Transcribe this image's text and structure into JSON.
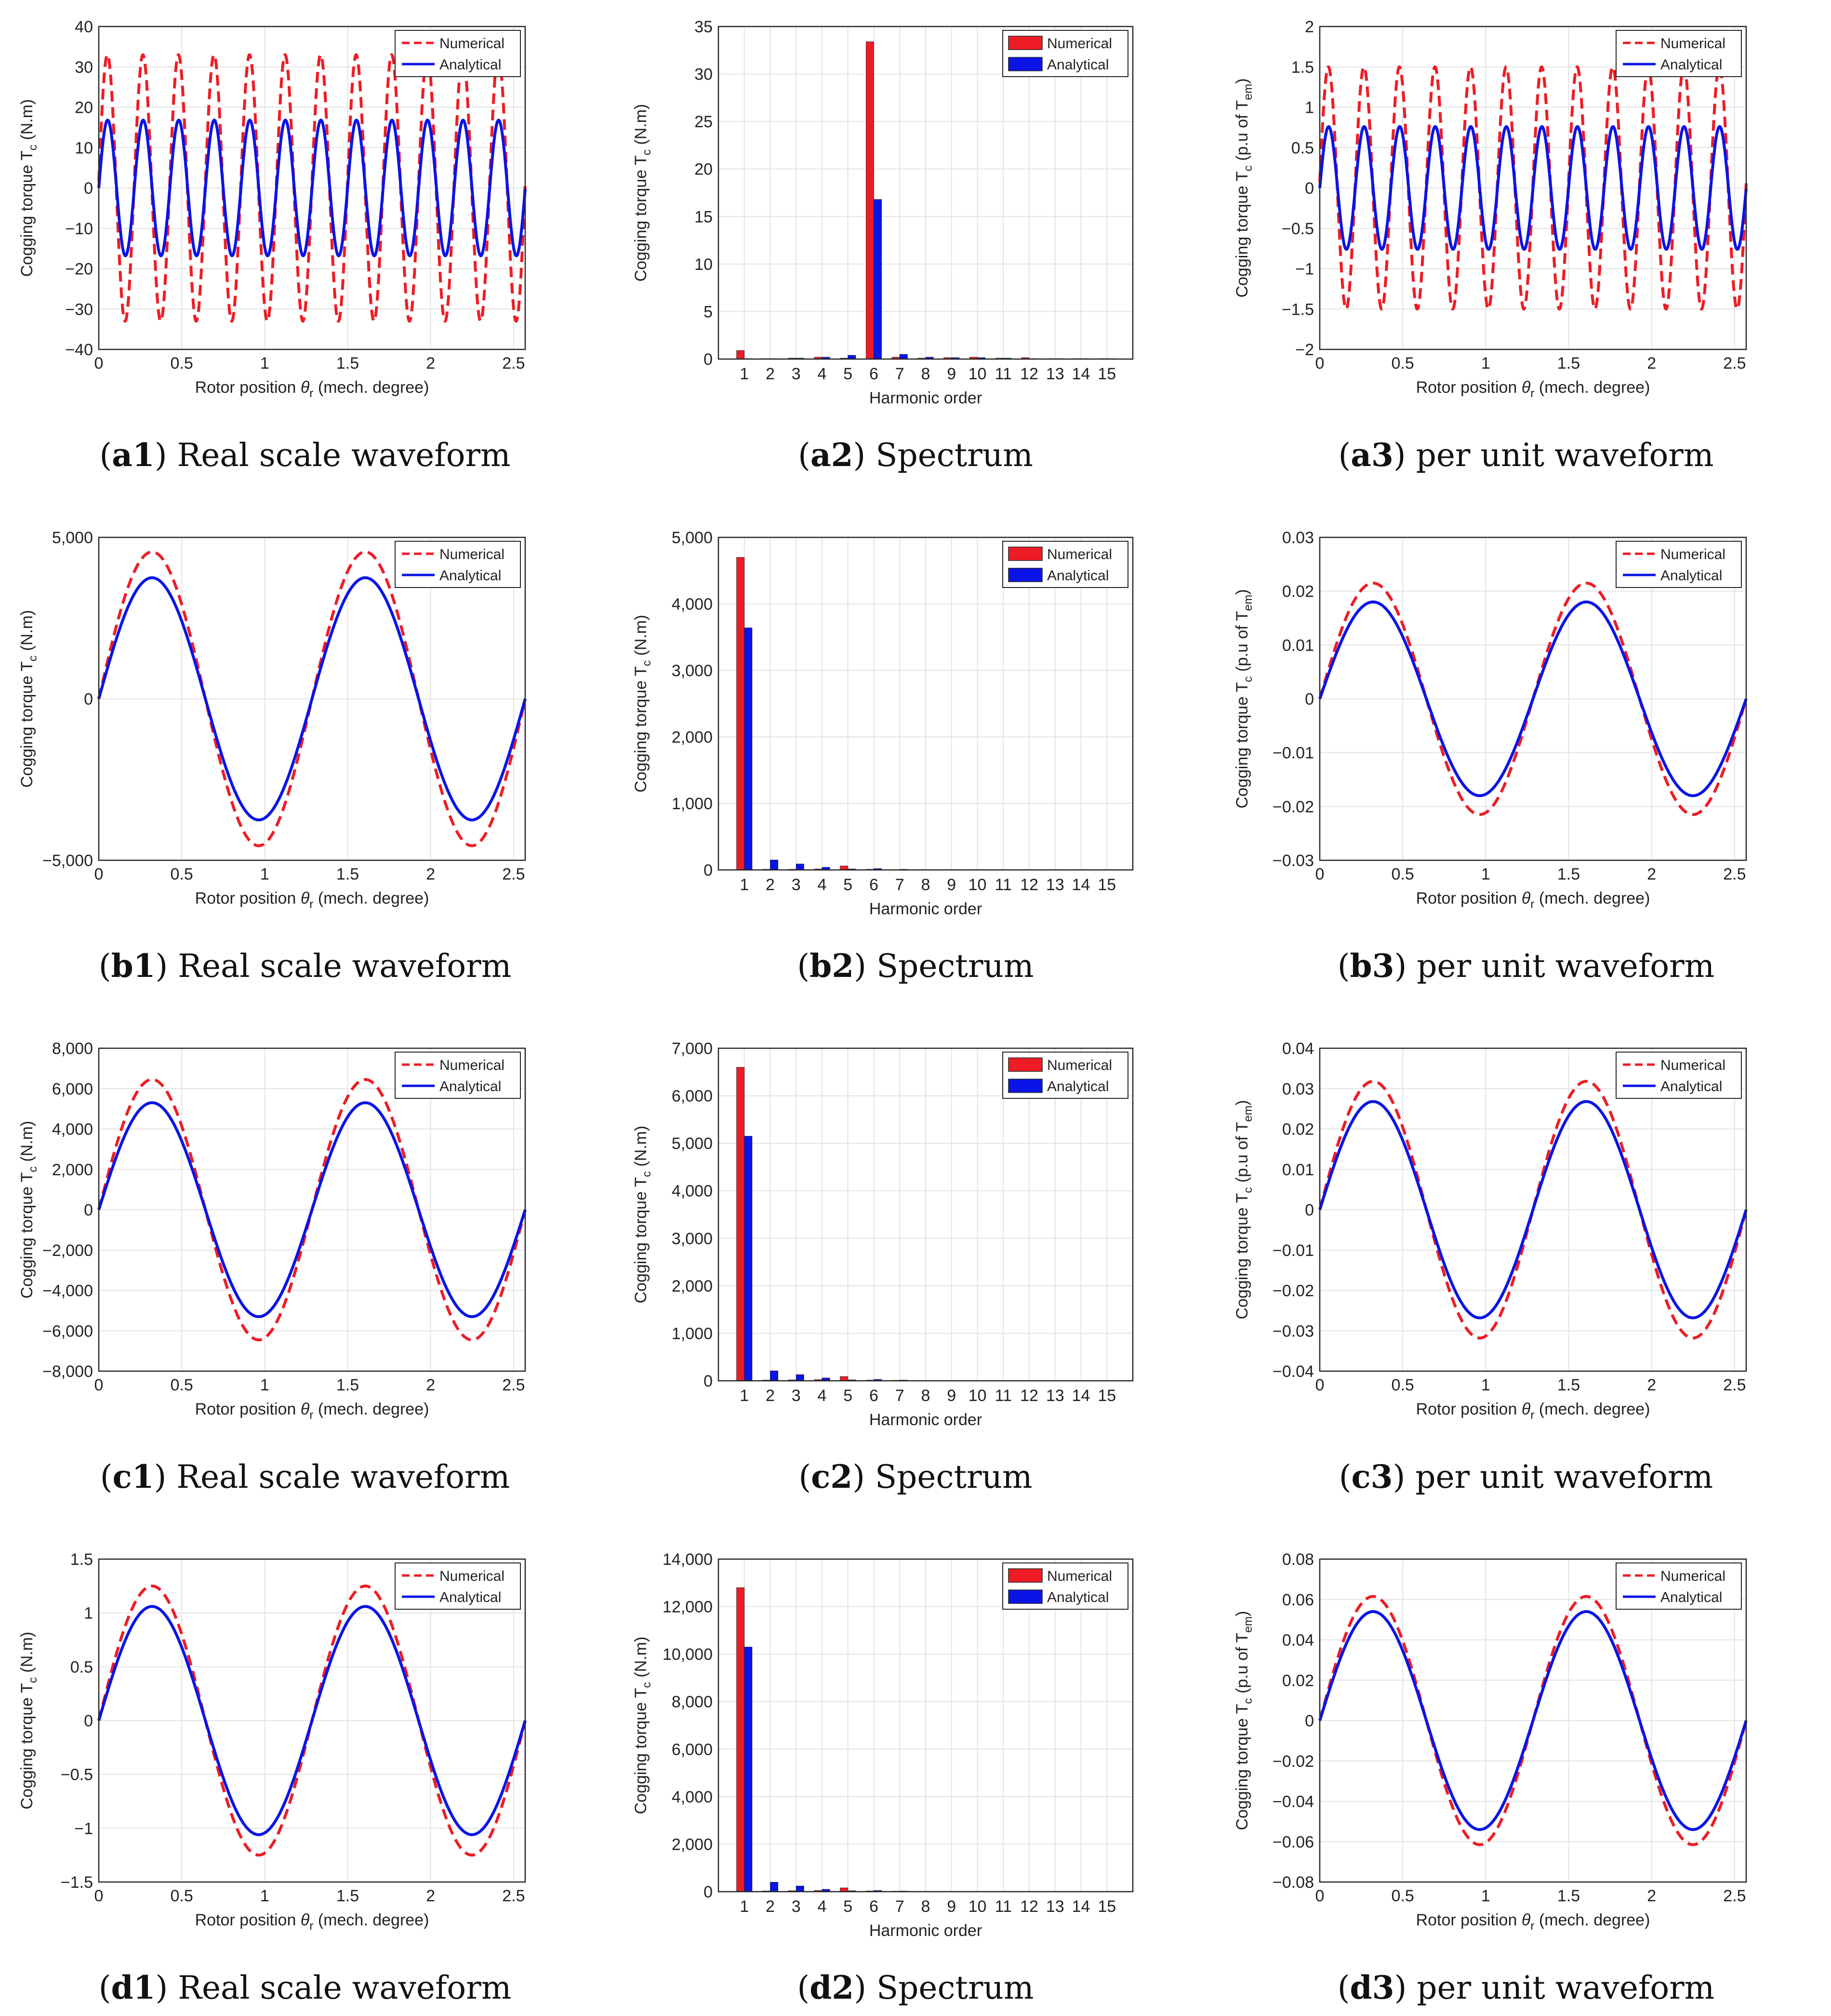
{
  "figure": {
    "id": "cogging-torque-figure"
  },
  "colors": {
    "numerical": "#ee1c25",
    "analytical": "#0a14e6",
    "grid": "#e3e3e3",
    "axis": "#262626"
  },
  "chart_data": [
    {
      "id": "a1",
      "type": "line",
      "caption_letter": "a1",
      "caption_text": "Real scale waveform",
      "ylabel": "Cogging torque T",
      "ylabel_sub": "c",
      "ylabel_tail": " (N.m)",
      "xlabel": "Rotor position θ",
      "xlabel_sub": "r",
      "xlabel_tail": " (mech. degree)",
      "xlim": [
        0,
        2.57
      ],
      "ylim": [
        -40,
        40
      ],
      "xticks": [
        0,
        0.5,
        1,
        1.5,
        2,
        2.5
      ],
      "xtick_labels": [
        "0",
        "0.5",
        "1",
        "1.5",
        "2",
        "2.5"
      ],
      "yticks": [
        -40,
        -30,
        -20,
        -10,
        0,
        10,
        20,
        30,
        40
      ],
      "ytick_labels": [
        "−40",
        "−30",
        "−20",
        "−10",
        "0",
        "10",
        "20",
        "30",
        "40"
      ],
      "legend": [
        "Numerical",
        "Analytical"
      ],
      "series": [
        {
          "name": "Numerical",
          "style": "dashed",
          "amplitude": 33,
          "cycles": 12,
          "period_deg": 0.2142
        },
        {
          "name": "Analytical",
          "style": "solid",
          "amplitude": 16.8,
          "cycles": 12,
          "period_deg": 0.2142
        }
      ]
    },
    {
      "id": "a2",
      "type": "bar",
      "caption_letter": "a2",
      "caption_text": "Spectrum",
      "ylabel": "Cogging torque T",
      "ylabel_sub": "c",
      "ylabel_tail": " (N.m)",
      "xlabel": "Harmonic order",
      "categories": [
        "1",
        "2",
        "3",
        "4",
        "5",
        "6",
        "7",
        "8",
        "9",
        "10",
        "11",
        "12",
        "13",
        "14",
        "15"
      ],
      "ylim": [
        0,
        35
      ],
      "yticks": [
        0,
        5,
        10,
        15,
        20,
        25,
        30,
        35
      ],
      "ytick_labels": [
        "0",
        "5",
        "10",
        "15",
        "20",
        "25",
        "30",
        "35"
      ],
      "legend": [
        "Numerical",
        "Analytical"
      ],
      "series": [
        {
          "name": "Numerical",
          "values": [
            0.9,
            0.05,
            0.1,
            0.2,
            0.1,
            33.4,
            0.2,
            0.1,
            0.15,
            0.2,
            0.1,
            0.15,
            0.05,
            0.05,
            0.05
          ]
        },
        {
          "name": "Analytical",
          "values": [
            0.05,
            0.05,
            0.1,
            0.2,
            0.4,
            16.8,
            0.5,
            0.2,
            0.15,
            0.15,
            0.1,
            0.05,
            0.05,
            0.05,
            0.05
          ]
        }
      ]
    },
    {
      "id": "a3",
      "type": "line",
      "caption_letter": "a3",
      "caption_text": "per unit waveform",
      "ylabel": "Cogging torque T",
      "ylabel_sub": "c",
      "ylabel_tail": " (p.u of T",
      "ylabel_sub2": "em",
      "ylabel_tail2": ")",
      "xlabel": "Rotor position θ",
      "xlabel_sub": "r",
      "xlabel_tail": " (mech. degree)",
      "xlim": [
        0,
        2.57
      ],
      "ylim": [
        -2,
        2
      ],
      "xticks": [
        0,
        0.5,
        1,
        1.5,
        2,
        2.5
      ],
      "xtick_labels": [
        "0",
        "0.5",
        "1",
        "1.5",
        "2",
        "2.5"
      ],
      "yticks": [
        -2,
        -1.5,
        -1,
        -0.5,
        0,
        0.5,
        1,
        1.5,
        2
      ],
      "ytick_labels": [
        "−2",
        "−1.5",
        "−1",
        "−0.5",
        "0",
        "0.5",
        "1",
        "1.5",
        "2"
      ],
      "legend": [
        "Numerical",
        "Analytical"
      ],
      "series": [
        {
          "name": "Numerical",
          "style": "dashed",
          "amplitude": 1.5,
          "cycles": 12,
          "period_deg": 0.2142
        },
        {
          "name": "Analytical",
          "style": "solid",
          "amplitude": 0.76,
          "cycles": 12,
          "period_deg": 0.2142
        }
      ]
    },
    {
      "id": "b1",
      "type": "line",
      "caption_letter": "b1",
      "caption_text": "Real scale waveform",
      "ylabel": "Cogging torque T",
      "ylabel_sub": "c",
      "ylabel_tail": " (N.m)",
      "xlabel": "Rotor position θ",
      "xlabel_sub": "r",
      "xlabel_tail": " (mech. degree)",
      "xlim": [
        0,
        2.57
      ],
      "ylim": [
        -5000,
        5000
      ],
      "xticks": [
        0,
        0.5,
        1,
        1.5,
        2,
        2.5
      ],
      "xtick_labels": [
        "0",
        "0.5",
        "1",
        "1.5",
        "2",
        "2.5"
      ],
      "yticks": [
        -5000,
        0,
        5000
      ],
      "ytick_labels": [
        "−5,000",
        "0",
        "5,000"
      ],
      "legend": [
        "Numerical",
        "Analytical"
      ],
      "series": [
        {
          "name": "Numerical",
          "style": "dashed",
          "amplitude": 4550,
          "cycles": 2,
          "period_deg": 1.285
        },
        {
          "name": "Analytical",
          "style": "solid",
          "amplitude": 3750,
          "cycles": 2,
          "period_deg": 1.285
        }
      ]
    },
    {
      "id": "b2",
      "type": "bar",
      "caption_letter": "b2",
      "caption_text": "Spectrum",
      "ylabel": "Cogging torque T",
      "ylabel_sub": "c",
      "ylabel_tail": " (N.m)",
      "xlabel": "Harmonic order",
      "categories": [
        "1",
        "2",
        "3",
        "4",
        "5",
        "6",
        "7",
        "8",
        "9",
        "10",
        "11",
        "12",
        "13",
        "14",
        "15"
      ],
      "ylim": [
        0,
        5000
      ],
      "yticks": [
        0,
        1000,
        2000,
        3000,
        4000,
        5000
      ],
      "ytick_labels": [
        "0",
        "1,000",
        "2,000",
        "3,000",
        "4,000",
        "5,000"
      ],
      "legend": [
        "Numerical",
        "Analytical"
      ],
      "series": [
        {
          "name": "Numerical",
          "values": [
            4700,
            10,
            10,
            15,
            60,
            10,
            5,
            5,
            5,
            5,
            5,
            5,
            5,
            5,
            5
          ]
        },
        {
          "name": "Analytical",
          "values": [
            3640,
            150,
            90,
            40,
            15,
            20,
            10,
            5,
            5,
            5,
            5,
            5,
            5,
            5,
            5
          ]
        }
      ]
    },
    {
      "id": "b3",
      "type": "line",
      "caption_letter": "b3",
      "caption_text": "per unit waveform",
      "ylabel": "Cogging torque T",
      "ylabel_sub": "c",
      "ylabel_tail": " (p.u of T",
      "ylabel_sub2": "em",
      "ylabel_tail2": ")",
      "xlabel": "Rotor position θ",
      "xlabel_sub": "r",
      "xlabel_tail": " (mech. degree)",
      "xlim": [
        0,
        2.57
      ],
      "ylim": [
        -0.03,
        0.03
      ],
      "xticks": [
        0,
        0.5,
        1,
        1.5,
        2,
        2.5
      ],
      "xtick_labels": [
        "0",
        "0.5",
        "1",
        "1.5",
        "2",
        "2.5"
      ],
      "yticks": [
        -0.03,
        -0.02,
        -0.01,
        0,
        0.01,
        0.02,
        0.03
      ],
      "ytick_labels": [
        "−0.03",
        "−0.02",
        "−0.01",
        "0",
        "0.01",
        "0.02",
        "0.03"
      ],
      "legend": [
        "Numerical",
        "Analytical"
      ],
      "series": [
        {
          "name": "Numerical",
          "style": "dashed",
          "amplitude": 0.0215,
          "cycles": 2,
          "period_deg": 1.285
        },
        {
          "name": "Analytical",
          "style": "solid",
          "amplitude": 0.018,
          "cycles": 2,
          "period_deg": 1.285
        }
      ]
    },
    {
      "id": "c1",
      "type": "line",
      "caption_letter": "c1",
      "caption_text": "Real scale waveform",
      "ylabel": "Cogging torque T",
      "ylabel_sub": "c",
      "ylabel_tail": " (N.m)",
      "xlabel": "Rotor position θ",
      "xlabel_sub": "r",
      "xlabel_tail": " (mech. degree)",
      "xlim": [
        0,
        2.57
      ],
      "ylim": [
        -8000,
        8000
      ],
      "xticks": [
        0,
        0.5,
        1,
        1.5,
        2,
        2.5
      ],
      "xtick_labels": [
        "0",
        "0.5",
        "1",
        "1.5",
        "2",
        "2.5"
      ],
      "yticks": [
        -8000,
        -6000,
        -4000,
        -2000,
        0,
        2000,
        4000,
        6000,
        8000
      ],
      "ytick_labels": [
        "−8,000",
        "−6,000",
        "−4,000",
        "−2,000",
        "0",
        "2,000",
        "4,000",
        "6,000",
        "8,000"
      ],
      "legend": [
        "Numerical",
        "Analytical"
      ],
      "series": [
        {
          "name": "Numerical",
          "style": "dashed",
          "amplitude": 6450,
          "cycles": 2,
          "period_deg": 1.285
        },
        {
          "name": "Analytical",
          "style": "solid",
          "amplitude": 5300,
          "cycles": 2,
          "period_deg": 1.285
        }
      ]
    },
    {
      "id": "c2",
      "type": "bar",
      "caption_letter": "c2",
      "caption_text": "Spectrum",
      "ylabel": "Cogging torque T",
      "ylabel_sub": "c",
      "ylabel_tail": " (N.m)",
      "xlabel": "Harmonic order",
      "categories": [
        "1",
        "2",
        "3",
        "4",
        "5",
        "6",
        "7",
        "8",
        "9",
        "10",
        "11",
        "12",
        "13",
        "14",
        "15"
      ],
      "ylim": [
        0,
        7000
      ],
      "yticks": [
        0,
        1000,
        2000,
        3000,
        4000,
        5000,
        6000,
        7000
      ],
      "ytick_labels": [
        "0",
        "1,000",
        "2,000",
        "3,000",
        "4,000",
        "5,000",
        "6,000",
        "7,000"
      ],
      "legend": [
        "Numerical",
        "Analytical"
      ],
      "series": [
        {
          "name": "Numerical",
          "values": [
            6600,
            15,
            20,
            25,
            90,
            15,
            10,
            5,
            5,
            5,
            5,
            5,
            5,
            5,
            5
          ]
        },
        {
          "name": "Analytical",
          "values": [
            5150,
            210,
            130,
            60,
            20,
            30,
            15,
            5,
            5,
            5,
            5,
            5,
            5,
            5,
            5
          ]
        }
      ]
    },
    {
      "id": "c3",
      "type": "line",
      "caption_letter": "c3",
      "caption_text": "per unit waveform",
      "ylabel": "Cogging torque T",
      "ylabel_sub": "c",
      "ylabel_tail": " (p.u of T",
      "ylabel_sub2": "em",
      "ylabel_tail2": ")",
      "xlabel": "Rotor position θ",
      "xlabel_sub": "r",
      "xlabel_tail": " (mech. degree)",
      "xlim": [
        0,
        2.57
      ],
      "ylim": [
        -0.04,
        0.04
      ],
      "xticks": [
        0,
        0.5,
        1,
        1.5,
        2,
        2.5
      ],
      "xtick_labels": [
        "0",
        "0.5",
        "1",
        "1.5",
        "2",
        "2.5"
      ],
      "yticks": [
        -0.04,
        -0.03,
        -0.02,
        -0.01,
        0,
        0.01,
        0.02,
        0.03,
        0.04
      ],
      "ytick_labels": [
        "−0.04",
        "−0.03",
        "−0.02",
        "−0.01",
        "0",
        "0.01",
        "0.02",
        "0.03",
        "0.04"
      ],
      "legend": [
        "Numerical",
        "Analytical"
      ],
      "series": [
        {
          "name": "Numerical",
          "style": "dashed",
          "amplitude": 0.0318,
          "cycles": 2,
          "period_deg": 1.285
        },
        {
          "name": "Analytical",
          "style": "solid",
          "amplitude": 0.0268,
          "cycles": 2,
          "period_deg": 1.285
        }
      ]
    },
    {
      "id": "d1",
      "type": "line",
      "caption_letter": "d1",
      "caption_text": "Real scale waveform",
      "ylabel": "Cogging torque T",
      "ylabel_sub": "c",
      "ylabel_tail": " (N.m)",
      "xlabel": "Rotor position θ",
      "xlabel_sub": "r",
      "xlabel_tail": " (mech. degree)",
      "xlim": [
        0,
        2.57
      ],
      "ylim": [
        -1.5,
        1.5
      ],
      "xticks": [
        0,
        0.5,
        1,
        1.5,
        2,
        2.5
      ],
      "xtick_labels": [
        "0",
        "0.5",
        "1",
        "1.5",
        "2",
        "2.5"
      ],
      "yticks": [
        -1.5,
        -1,
        -0.5,
        0,
        0.5,
        1,
        1.5
      ],
      "ytick_labels": [
        "−1.5",
        "−1",
        "−0.5",
        "0",
        "0.5",
        "1",
        "1.5"
      ],
      "legend": [
        "Numerical",
        "Analytical"
      ],
      "series": [
        {
          "name": "Numerical",
          "style": "dashed",
          "amplitude": 1.25,
          "cycles": 2,
          "period_deg": 1.285
        },
        {
          "name": "Analytical",
          "style": "solid",
          "amplitude": 1.06,
          "cycles": 2,
          "period_deg": 1.285
        }
      ]
    },
    {
      "id": "d2",
      "type": "bar",
      "caption_letter": "d2",
      "caption_text": "Spectrum",
      "ylabel": "Cogging torque T",
      "ylabel_sub": "c",
      "ylabel_tail": " (N.m)",
      "xlabel": "Harmonic order",
      "categories": [
        "1",
        "2",
        "3",
        "4",
        "5",
        "6",
        "7",
        "8",
        "9",
        "10",
        "11",
        "12",
        "13",
        "14",
        "15"
      ],
      "ylim": [
        0,
        14000
      ],
      "yticks": [
        0,
        2000,
        4000,
        6000,
        8000,
        10000,
        12000,
        14000
      ],
      "ytick_labels": [
        "0",
        "2,000",
        "4,000",
        "6,000",
        "8,000",
        "10,000",
        "12,000",
        "14,000"
      ],
      "legend": [
        "Numerical",
        "Analytical"
      ],
      "series": [
        {
          "name": "Numerical",
          "values": [
            12800,
            30,
            40,
            50,
            160,
            30,
            20,
            10,
            10,
            10,
            10,
            10,
            10,
            10,
            10
          ]
        },
        {
          "name": "Analytical",
          "values": [
            10300,
            400,
            240,
            100,
            40,
            50,
            25,
            10,
            10,
            10,
            10,
            10,
            10,
            10,
            10
          ]
        }
      ]
    },
    {
      "id": "d3",
      "type": "line",
      "caption_letter": "d3",
      "caption_text": "per unit waveform",
      "ylabel": "Cogging torque T",
      "ylabel_sub": "c",
      "ylabel_tail": " (p.u of T",
      "ylabel_sub2": "em",
      "ylabel_tail2": ")",
      "xlabel": "Rotor position θ",
      "xlabel_sub": "r",
      "xlabel_tail": " (mech. degree)",
      "xlim": [
        0,
        2.57
      ],
      "ylim": [
        -0.08,
        0.08
      ],
      "xticks": [
        0,
        0.5,
        1,
        1.5,
        2,
        2.5
      ],
      "xtick_labels": [
        "0",
        "0.5",
        "1",
        "1.5",
        "2",
        "2.5"
      ],
      "yticks": [
        -0.08,
        -0.06,
        -0.04,
        -0.02,
        0,
        0.02,
        0.04,
        0.06,
        0.08
      ],
      "ytick_labels": [
        "−0.08",
        "−0.06",
        "−0.04",
        "−0.02",
        "0",
        "0.02",
        "0.04",
        "0.06",
        "0.08"
      ],
      "legend": [
        "Numerical",
        "Analytical"
      ],
      "series": [
        {
          "name": "Numerical",
          "style": "dashed",
          "amplitude": 0.0615,
          "cycles": 2,
          "period_deg": 1.285
        },
        {
          "name": "Analytical",
          "style": "solid",
          "amplitude": 0.054,
          "cycles": 2,
          "period_deg": 1.285
        }
      ]
    }
  ]
}
